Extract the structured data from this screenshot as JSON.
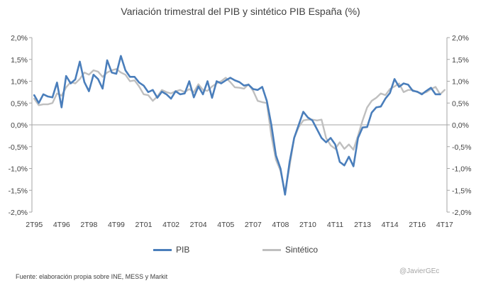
{
  "chart_data": {
    "type": "line",
    "title": "Variación trimestral del PIB y sintético PIB España (%)",
    "xlabel": "",
    "ylabel": "",
    "ylim": [
      -2.0,
      2.0
    ],
    "y_ticks": [
      "2,0%",
      "1,5%",
      "1,0%",
      "0,5%",
      "0,0%",
      "-0,5%",
      "-1,0%",
      "-1,5%",
      "-2,0%"
    ],
    "y_tick_values": [
      2.0,
      1.5,
      1.0,
      0.5,
      0.0,
      -0.5,
      -1.0,
      -1.5,
      -2.0
    ],
    "x_tick_labels": [
      "2T95",
      "4T96",
      "2T98",
      "4T99",
      "2T01",
      "4T02",
      "2T04",
      "4T05",
      "2T07",
      "4T08",
      "2T10",
      "4T11",
      "2T13",
      "4T14",
      "2T16",
      "4T17"
    ],
    "x_tick_index": [
      0,
      6,
      12,
      18,
      24,
      30,
      36,
      42,
      48,
      54,
      60,
      66,
      72,
      78,
      84,
      90
    ],
    "n_points": 91,
    "grid": false,
    "secondary_y_axis": true,
    "legend_position": "bottom",
    "series": [
      {
        "name": "PIB",
        "color": "#4a7ebb",
        "values": [
          0.68,
          0.5,
          0.7,
          0.65,
          0.63,
          0.97,
          0.4,
          1.12,
          0.95,
          1.04,
          1.45,
          0.98,
          0.77,
          1.15,
          1.05,
          0.83,
          1.48,
          1.2,
          1.17,
          1.58,
          1.25,
          1.1,
          1.1,
          0.97,
          0.9,
          0.75,
          0.8,
          0.62,
          0.76,
          0.7,
          0.6,
          0.77,
          0.7,
          0.72,
          1.0,
          0.63,
          0.88,
          0.7,
          1.0,
          0.62,
          1.0,
          0.95,
          1.02,
          1.08,
          1.02,
          0.98,
          0.9,
          0.92,
          0.82,
          0.8,
          0.87,
          0.55,
          0.0,
          -0.7,
          -1.0,
          -1.6,
          -0.85,
          -0.3,
          0.0,
          0.3,
          0.17,
          0.1,
          -0.1,
          -0.3,
          -0.4,
          -0.3,
          -0.45,
          -0.85,
          -0.93,
          -0.73,
          -0.95,
          -0.3,
          -0.06,
          -0.05,
          0.28,
          0.4,
          0.42,
          0.6,
          0.73,
          1.05,
          0.87,
          0.95,
          0.92,
          0.78,
          0.76,
          0.7,
          0.78,
          0.85,
          0.7,
          0.7,
          null
        ]
      },
      {
        "name": "Sintético",
        "color": "#bfbfbf",
        "values": [
          0.6,
          0.45,
          0.47,
          0.47,
          0.5,
          0.72,
          0.67,
          0.86,
          0.98,
          0.95,
          1.05,
          1.2,
          1.15,
          1.25,
          1.22,
          1.1,
          1.2,
          1.25,
          1.28,
          1.2,
          1.15,
          1.0,
          1.02,
          0.88,
          0.7,
          0.68,
          0.55,
          0.65,
          0.8,
          0.75,
          0.72,
          0.77,
          0.8,
          0.75,
          0.82,
          0.75,
          0.93,
          0.8,
          0.78,
          0.88,
          0.95,
          1.0,
          1.08,
          0.98,
          0.86,
          0.85,
          0.83,
          0.93,
          0.78,
          0.55,
          0.52,
          0.5,
          -0.25,
          -0.8,
          -1.05,
          -1.55,
          -0.95,
          -0.3,
          -0.05,
          0.1,
          0.12,
          0.12,
          0.1,
          0.12,
          -0.3,
          -0.47,
          -0.55,
          -0.4,
          -0.55,
          -0.45,
          -0.57,
          -0.25,
          0.1,
          0.4,
          0.55,
          0.62,
          0.72,
          0.68,
          0.82,
          0.88,
          0.95,
          0.75,
          0.8,
          0.8,
          0.75,
          0.72,
          0.75,
          0.82,
          0.87,
          0.7,
          0.8
        ]
      }
    ]
  },
  "source": "Fuente: elaboración propia sobre INE, MESS y Markit",
  "credit": "@JavierGEc"
}
